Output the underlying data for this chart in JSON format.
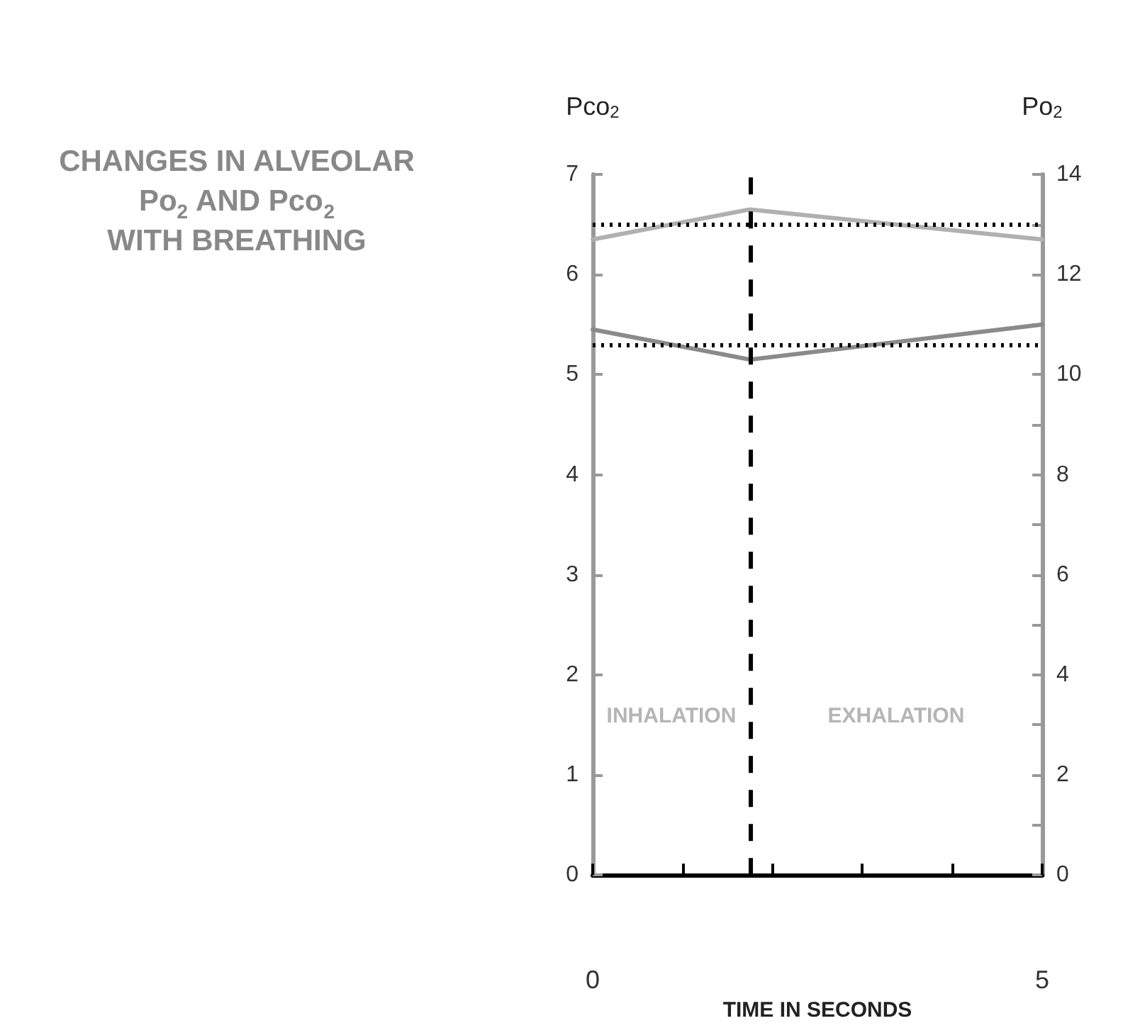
{
  "chart_data": {
    "type": "line",
    "title": "CHANGES IN ALVEOLAR\nPo$_{2}$ AND Pco$_{2}$\nWITH BREATHING",
    "xlabel": "TIME IN SECONDS",
    "ylabel": "Pco$_{2}$",
    "y2label": "Po$_{2}$",
    "x": [
      0,
      1.75,
      5
    ],
    "series": [
      {
        "values": [
          12.7,
          13.3,
          12.7
        ],
        "color": "#b0b0b0",
        "axis": "y2"
      },
      {
        "values": [
          5.45,
          5.15,
          5.5
        ],
        "color": "#8a8a8a"
      }
    ],
    "xlim": [
      0,
      5
    ],
    "xticks": [
      0,
      {
        "value": 1,
        "label": null
      },
      {
        "value": 2,
        "label": null
      },
      {
        "value": 3,
        "label": null
      },
      {
        "value": 4,
        "label": null
      },
      5
    ],
    "ylim": [
      0,
      7
    ],
    "yticks": [
      0,
      1,
      2,
      3,
      4,
      5,
      6,
      7
    ],
    "y2lim": [
      0,
      14
    ],
    "y2ticks": [
      0,
      {
        "value": 1,
        "label": null
      },
      2,
      {
        "value": 3,
        "label": null
      },
      4,
      {
        "value": 5,
        "label": null
      },
      6,
      {
        "value": 7,
        "label": null
      },
      8,
      {
        "value": 9,
        "label": null
      },
      10,
      {
        "value": 11,
        "label": null
      },
      12,
      {
        "value": 13,
        "label": null
      },
      14
    ],
    "ref_lines": [
      {
        "axis": "x",
        "value": 1.75,
        "color": "#000000",
        "line_style": "dashed"
      },
      {
        "axis": "y",
        "value": 5.3,
        "color": "#000000",
        "line_style": "dotted"
      },
      {
        "axis": "y2",
        "value": 13,
        "color": "#000000",
        "line_style": "dotted"
      }
    ],
    "annotations": [
      "INHALATION",
      "EXHALATION"
    ],
    "marker": "none",
    "line_style": "solid"
  }
}
